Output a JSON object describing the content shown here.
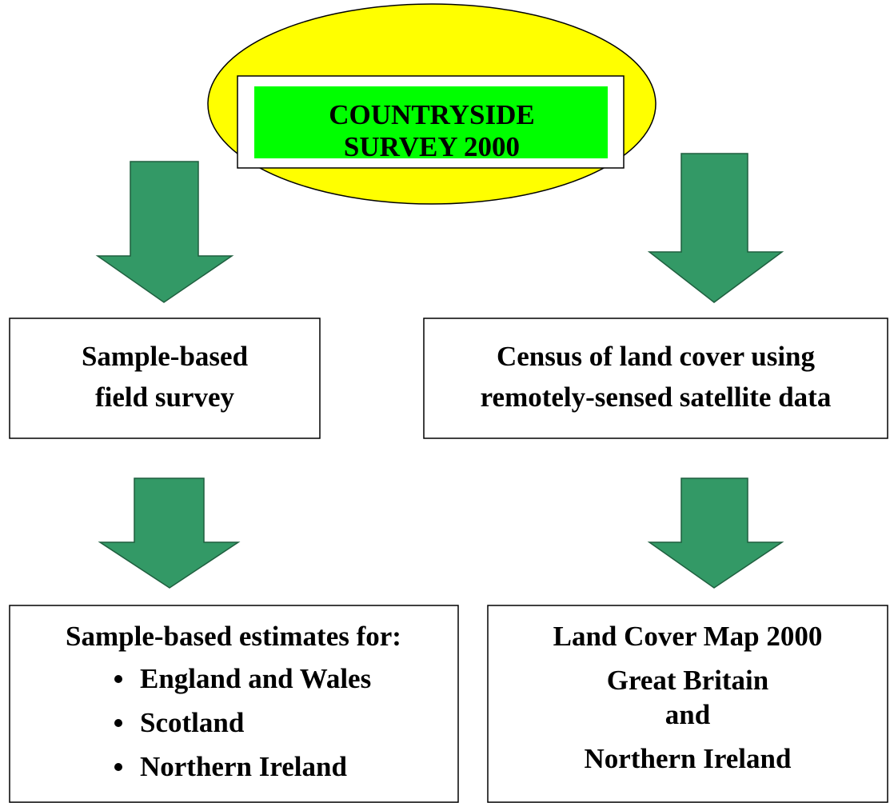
{
  "title": {
    "lines": [
      "COUNTRYSIDE",
      "SURVEY 2000"
    ]
  },
  "nodes": [
    {
      "lines": [
        "Sample-based",
        "field survey"
      ]
    },
    {
      "lines": [
        "Census of land cover using",
        "remotely-sensed satellite data"
      ]
    },
    {
      "heading": "Sample-based estimates for:",
      "items": [
        "England and Wales",
        "Scotland",
        "Northern Ireland"
      ]
    },
    {
      "heading": "Land Cover Map 2000",
      "lines": [
        "Great Britain",
        "and",
        "Northern Ireland"
      ]
    }
  ]
}
